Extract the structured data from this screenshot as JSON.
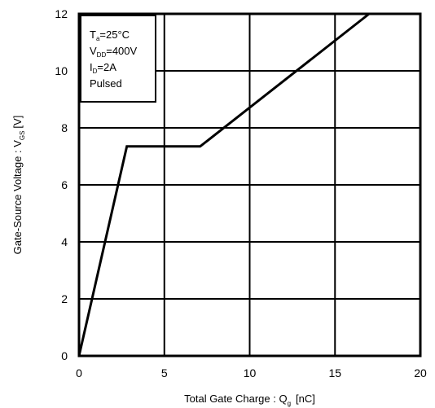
{
  "chart_data": {
    "type": "line",
    "xlabel": {
      "main": "Total Gate Charge : Q",
      "sub": "g",
      "unit": "[nC]"
    },
    "ylabel": {
      "main": "Gate-Source Voltage : V",
      "sub": "GS",
      "unit": "[V]"
    },
    "xlim": [
      0,
      20
    ],
    "ylim": [
      0,
      12
    ],
    "x_ticks": [
      0,
      5,
      10,
      15,
      20
    ],
    "y_ticks": [
      0,
      2,
      4,
      6,
      8,
      10,
      12
    ],
    "grid": true,
    "series": [
      {
        "x": [
          0,
          2.8,
          7.1,
          17.0
        ],
        "y": [
          0,
          7.35,
          7.35,
          12.0
        ]
      }
    ],
    "annotation_lines": [
      {
        "main": "T",
        "sub": "a",
        "rest": "=25°C"
      },
      {
        "main": "V",
        "sub": "DD",
        "rest": "=400V"
      },
      {
        "main": "I",
        "sub": "D",
        "rest": "=2A"
      },
      {
        "main": "Pulsed",
        "sub": "",
        "rest": ""
      }
    ]
  }
}
